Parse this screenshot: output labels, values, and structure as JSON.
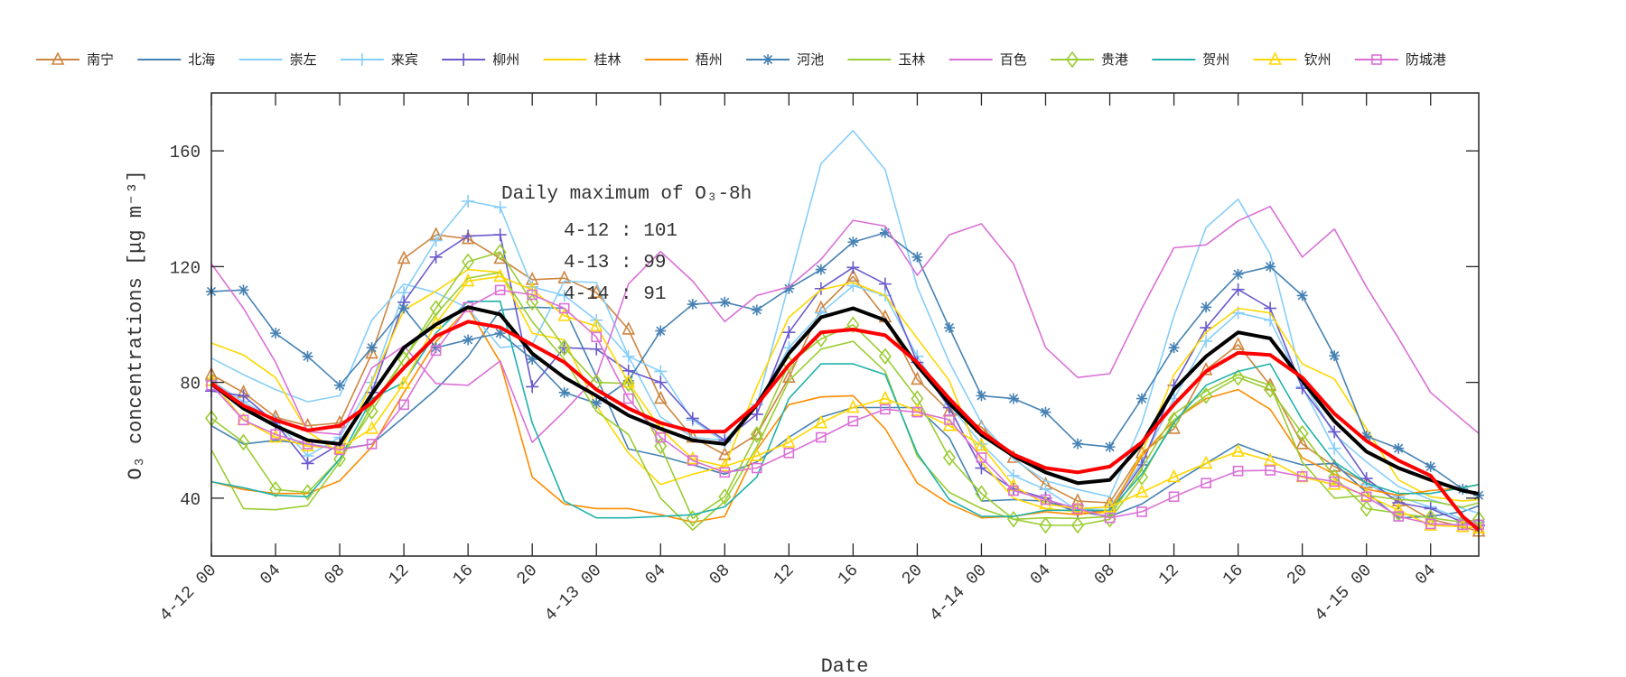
{
  "chart_data": {
    "type": "line",
    "xlabel": "Date",
    "ylabel": "O₃ concentrations [μg m⁻³]",
    "ylim": [
      20,
      180
    ],
    "yticks": [
      40,
      80,
      120,
      160
    ],
    "xlim": [
      "4-12 00",
      "4-15 07"
    ],
    "xticks": [
      "4-12 00",
      "04",
      "08",
      "12",
      "16",
      "20",
      "4-13 00",
      "04",
      "08",
      "12",
      "16",
      "20",
      "4-14 00",
      "04",
      "08",
      "12",
      "16",
      "20",
      "4-15 00",
      "04"
    ],
    "grid": false,
    "legend_position": "top",
    "annotation": {
      "title": "Daily maximum of O₃-8h",
      "lines": [
        "4-12 : 101",
        "4-13 : 99",
        "4-14 : 91"
      ]
    },
    "x": [
      "4-12 00",
      "4-12 02",
      "4-12 04",
      "4-12 06",
      "4-12 08",
      "4-12 10",
      "4-12 12",
      "4-12 14",
      "4-12 16",
      "4-12 18",
      "4-12 20",
      "4-12 22",
      "4-13 00",
      "4-13 02",
      "4-13 04",
      "4-13 06",
      "4-13 08",
      "4-13 10",
      "4-13 12",
      "4-13 14",
      "4-13 16",
      "4-13 18",
      "4-13 20",
      "4-13 22",
      "4-14 00",
      "4-14 02",
      "4-14 04",
      "4-14 06",
      "4-14 08",
      "4-14 10",
      "4-14 12",
      "4-14 14",
      "4-14 16",
      "4-14 18",
      "4-14 20",
      "4-14 22",
      "4-15 00",
      "4-15 02",
      "4-15 04",
      "4-15 06",
      "4-15 07"
    ],
    "series": [
      {
        "name": "南宁",
        "color": "#cd853f",
        "marker": "triangle",
        "width": 1.6,
        "values": [
          82.7,
          76.5,
          68,
          65,
          66,
          90,
          122.8,
          131,
          129.6,
          122.8,
          115.5,
          116,
          111,
          98.3,
          74.4,
          61,
          55,
          62,
          81.7,
          105.6,
          116.6,
          102.5,
          81,
          70,
          64.5,
          54,
          44.7,
          39,
          38.4,
          55.6,
          64,
          84.3,
          93,
          79,
          58.7,
          50.9,
          45.2,
          39,
          32.7,
          30.1,
          28.5
        ]
      },
      {
        "name": "北海",
        "color": "#4682b4",
        "marker": "none",
        "width": 1.6,
        "values": [
          65,
          58.7,
          60,
          58.7,
          57,
          58.7,
          68,
          77.5,
          89,
          105,
          106,
          105.6,
          82,
          57,
          54.6,
          51.5,
          48.3,
          52.5,
          61,
          68,
          71.3,
          71.3,
          71.3,
          60.8,
          39,
          39.5,
          39,
          35.3,
          33.7,
          38,
          45.2,
          52,
          58.7,
          54.6,
          51.5,
          52,
          42,
          33.2,
          33.7,
          35.3,
          37.4
        ]
      },
      {
        "name": "崇左",
        "color": "#87cefa",
        "marker": "none",
        "width": 1.6,
        "values": [
          88.4,
          82.7,
          77.5,
          73.3,
          75.4,
          101.5,
          114,
          111,
          105.6,
          92,
          93,
          115,
          114.5,
          89,
          68,
          61,
          60,
          72,
          114,
          155.6,
          167,
          153.5,
          113,
          87,
          66,
          53.5,
          46,
          43,
          40.5,
          66,
          103,
          133.5,
          143.3,
          124.4,
          80.6,
          62,
          52.5,
          44,
          39.5,
          36.4,
          34.8
        ]
      },
      {
        "name": "来宾",
        "color": "#87cefa",
        "marker": "plus",
        "width": 1.6,
        "values": [
          80.6,
          73.3,
          67,
          54.6,
          61,
          80,
          111,
          129,
          142.6,
          140.5,
          113,
          110,
          101.5,
          89,
          83.8,
          67,
          59.3,
          72.3,
          92,
          104,
          113.4,
          110,
          89,
          72.3,
          58.7,
          47.8,
          43,
          35.8,
          37,
          52.5,
          74.4,
          94.2,
          104,
          101.5,
          78.5,
          57.2,
          44.7,
          40.5,
          36.9,
          32.7,
          31.7
        ]
      },
      {
        "name": "柳州",
        "color": "#6a5acd",
        "marker": "plus",
        "width": 1.6,
        "values": [
          77,
          75.4,
          66,
          52,
          58.7,
          76.5,
          107.7,
          123.3,
          130.6,
          131,
          78.5,
          92,
          91.5,
          84,
          80,
          67.6,
          60,
          69,
          97.3,
          112.4,
          119.7,
          114,
          86.9,
          71.3,
          50.4,
          43.1,
          40,
          34.8,
          35.8,
          51.5,
          79,
          98.9,
          112.1,
          105.6,
          78,
          62.9,
          46.8,
          38.4,
          36.4,
          31.7,
          30.6
        ]
      },
      {
        "name": "桂林",
        "color": "#ffd700",
        "marker": "none",
        "width": 1.6,
        "values": [
          93.6,
          89.5,
          81.7,
          63,
          55.6,
          80,
          105,
          111.5,
          119,
          118,
          97,
          94.7,
          72,
          55.6,
          44.7,
          48.3,
          51,
          78.5,
          102.5,
          112,
          114.5,
          110,
          95.2,
          80.6,
          52.5,
          40,
          36.4,
          35.3,
          34.8,
          55.6,
          82.7,
          97.3,
          105.6,
          104,
          86.4,
          81.2,
          64,
          46.3,
          40.5,
          39,
          39.5
        ]
      },
      {
        "name": "梧州",
        "color": "#ff8c00",
        "marker": "none",
        "width": 1.6,
        "values": [
          45.7,
          43,
          41.6,
          41.6,
          46,
          57.7,
          76.5,
          94,
          105.6,
          87,
          47.3,
          38,
          36.4,
          36.4,
          34.3,
          31.7,
          33.7,
          56.7,
          72.3,
          75,
          75.4,
          64,
          45.2,
          38,
          33.2,
          33.7,
          35.3,
          34.3,
          35.8,
          54.6,
          67,
          74.4,
          77.5,
          70.7,
          54,
          48.3,
          43.1,
          41,
          42.6,
          43.6,
          44.7
        ]
      },
      {
        "name": "河池",
        "color": "#4682b4",
        "marker": "asterisk",
        "width": 1.6,
        "values": [
          111.4,
          111.9,
          97,
          89,
          79,
          92,
          105.6,
          92,
          94.7,
          97,
          88,
          76.5,
          72.8,
          80.6,
          97.8,
          107,
          107.7,
          105,
          112.4,
          119,
          128.5,
          131.7,
          123.3,
          98.9,
          75.4,
          74.4,
          69.7,
          58.8,
          57.7,
          74.4,
          92,
          106,
          117.4,
          120,
          110,
          89.2,
          61.4,
          57.2,
          50.9,
          43.1,
          41
        ]
      },
      {
        "name": "玉林",
        "color": "#9acd32",
        "marker": "none",
        "width": 1.6,
        "values": [
          56.7,
          36.4,
          36,
          37.4,
          52.5,
          72,
          88,
          103.5,
          116,
          118,
          101,
          88,
          70,
          62,
          40,
          29,
          39,
          57.7,
          80.6,
          91.5,
          94.2,
          83.8,
          54.6,
          42,
          36.4,
          32.7,
          33.2,
          33,
          33.7,
          50.4,
          69,
          77,
          82.7,
          79,
          52.5,
          40,
          41,
          39.5,
          39,
          36.9,
          38.4
        ]
      },
      {
        "name": "百色",
        "color": "#da70d6",
        "marker": "none",
        "width": 1.6,
        "values": [
          121,
          105.6,
          87,
          63,
          62,
          85,
          92.6,
          79.6,
          79,
          87.4,
          59.3,
          70,
          82,
          114,
          125.2,
          115,
          101,
          110,
          113,
          122.5,
          136,
          134,
          117,
          131,
          134.8,
          121,
          92,
          81.7,
          83,
          105.6,
          126.5,
          127.5,
          135.8,
          140.8,
          123.3,
          133,
          113,
          95.2,
          76.5,
          67,
          62.4
        ]
      },
      {
        "name": "贵港",
        "color": "#9acd32",
        "marker": "diamond",
        "width": 1.6,
        "values": [
          67.6,
          59.3,
          43,
          42,
          53.5,
          70,
          88,
          105.6,
          121.7,
          125,
          107.7,
          92,
          80,
          79.6,
          58,
          33,
          40.5,
          62,
          86.4,
          95,
          99.9,
          89,
          74.4,
          54,
          41.6,
          32.7,
          30.6,
          30.6,
          32.7,
          47.3,
          67,
          75.4,
          81.7,
          77.5,
          62.4,
          47.3,
          36.4,
          34.8,
          33.2,
          31.7,
          32.7
        ]
      },
      {
        "name": "贺州",
        "color": "#20b2aa",
        "marker": "none",
        "width": 1.6,
        "values": [
          45.7,
          43.6,
          41,
          40.5,
          53.5,
          74.4,
          80,
          97,
          108,
          108,
          66,
          39,
          33.2,
          33.2,
          33.7,
          34.3,
          37,
          47.3,
          74.4,
          86.4,
          86.4,
          82.7,
          55.6,
          39.5,
          33.7,
          33.7,
          35.8,
          35.8,
          35.8,
          48.3,
          66,
          79,
          83.8,
          86.4,
          67.1,
          52.5,
          45.2,
          41.6,
          41.6,
          43.6,
          44.7
        ]
      },
      {
        "name": "钦州",
        "color": "#ffd700",
        "marker": "triangle",
        "width": 1.6,
        "values": [
          80.6,
          67,
          61,
          58,
          57.2,
          64,
          79.6,
          100.4,
          115,
          116.6,
          112,
          103,
          99.4,
          80,
          64,
          53.5,
          51,
          54.6,
          59.3,
          66,
          71.3,
          74.4,
          70.2,
          65,
          58.2,
          44.2,
          38,
          36.4,
          37,
          42,
          47.3,
          52,
          56.1,
          53,
          47.3,
          44.7,
          41,
          35.8,
          30.6,
          30.1,
          29.6
        ]
      },
      {
        "name": "防城港",
        "color": "#da70d6",
        "marker": "square",
        "width": 1.6,
        "values": [
          79,
          67,
          62,
          58.7,
          56.7,
          58.7,
          72.3,
          91,
          106,
          111.9,
          110.3,
          105.6,
          95.7,
          74.4,
          61,
          53,
          48.9,
          50.4,
          55.6,
          61,
          66.6,
          70.7,
          69.7,
          67.1,
          54,
          42.6,
          39.5,
          36.4,
          33.2,
          35.3,
          40.5,
          45.2,
          49.4,
          49.6,
          47.5,
          45.7,
          40.5,
          33.7,
          31.1,
          30.8,
          30.8
        ]
      },
      {
        "color": "#000000",
        "marker": "none",
        "width": 4,
        "values": [
          79.6,
          71,
          65,
          60,
          58.7,
          76,
          92,
          100,
          106,
          103.5,
          90,
          81.7,
          75.4,
          68.6,
          64,
          60,
          58.7,
          72.3,
          90,
          102.5,
          105.6,
          101.5,
          85.8,
          72.8,
          61.9,
          54.6,
          48.9,
          45.2,
          46.3,
          58.8,
          77.5,
          89,
          97.3,
          95.2,
          80.6,
          66.6,
          56.1,
          50.4,
          46.3,
          42.6,
          41.5
        ]
      },
      {
        "color": "#ff0000",
        "marker": "none",
        "width": 4,
        "values": [
          79.6,
          72,
          67,
          63.4,
          65,
          73,
          85,
          96,
          101,
          99,
          93,
          87,
          77.5,
          71,
          66,
          63,
          63,
          72.3,
          86,
          97.3,
          98.3,
          96.3,
          86.9,
          74.4,
          62.9,
          55.1,
          50.4,
          48.9,
          50.9,
          59.3,
          72.3,
          83.8,
          90.2,
          89.5,
          81.7,
          69.2,
          59.8,
          53,
          47.8,
          33.7,
          29
        ]
      }
    ]
  }
}
